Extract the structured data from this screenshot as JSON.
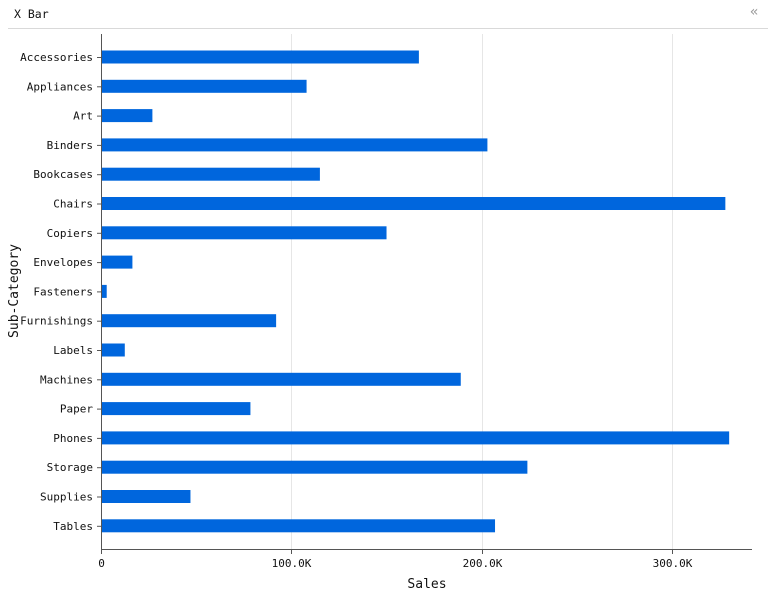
{
  "panel": {
    "title": "X Bar",
    "collapse_icon": "double-chevron-left-icon"
  },
  "chart_data": {
    "type": "bar",
    "orientation": "horizontal",
    "xlabel": "Sales",
    "ylabel": "Sub-Category",
    "xlim": [
      0,
      342000
    ],
    "x_ticks": [
      0,
      100000,
      200000,
      300000
    ],
    "x_tick_labels": [
      "0",
      "100.0K",
      "200.0K",
      "300.0K"
    ],
    "grid": "vertical",
    "bar_color": "#0066dd",
    "categories": [
      "Accessories",
      "Appliances",
      "Art",
      "Binders",
      "Bookcases",
      "Chairs",
      "Copiers",
      "Envelopes",
      "Fasteners",
      "Furnishings",
      "Labels",
      "Machines",
      "Paper",
      "Phones",
      "Storage",
      "Supplies",
      "Tables"
    ],
    "values": [
      167000,
      108000,
      27000,
      203000,
      115000,
      328000,
      150000,
      16500,
      3000,
      92000,
      12500,
      189000,
      78500,
      330000,
      224000,
      47000,
      207000
    ]
  }
}
